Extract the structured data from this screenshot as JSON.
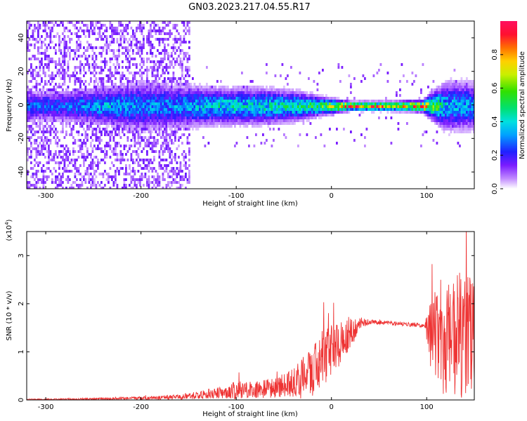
{
  "title": "GN03.2023.217.04.55.R17",
  "chart_data": [
    {
      "type": "heatmap",
      "xlabel": "Height of straight line (km)",
      "ylabel": "Frequency (Hz)",
      "xlim": [
        -320,
        150
      ],
      "ylim": [
        -50,
        50
      ],
      "xticks": [
        -300,
        -200,
        -100,
        0,
        100
      ],
      "yticks": [
        -40,
        -20,
        0,
        20,
        40
      ],
      "colorbar": {
        "label": "Normalized spectral amplitude",
        "range": [
          0.0,
          1.0
        ],
        "ticks": [
          0.0,
          0.2,
          0.4,
          0.6,
          0.8
        ]
      },
      "ridge": [
        {
          "x": -280,
          "band_hz": 5,
          "amplitude": 0.3
        },
        {
          "x": -240,
          "band_hz": 6,
          "amplitude": 0.4
        },
        {
          "x": -200,
          "band_hz": 8,
          "amplitude": 0.35
        },
        {
          "x": -160,
          "band_hz": 7,
          "amplitude": 0.35
        },
        {
          "x": -120,
          "band_hz": 6,
          "amplitude": 0.45
        },
        {
          "x": -80,
          "band_hz": 6,
          "amplitude": 0.45
        },
        {
          "x": -40,
          "band_hz": 5,
          "amplitude": 0.5
        },
        {
          "x": -10,
          "band_hz": 3,
          "amplitude": 0.6
        },
        {
          "x": 20,
          "band_hz": 1.5,
          "amplitude": 0.95
        },
        {
          "x": 60,
          "band_hz": 1.5,
          "amplitude": 0.9
        },
        {
          "x": 95,
          "band_hz": 2,
          "amplitude": 0.85
        },
        {
          "x": 120,
          "band_hz": 8,
          "amplitude": 0.4
        },
        {
          "x": 145,
          "band_hz": 8,
          "amplitude": 0.35
        }
      ]
    },
    {
      "type": "line",
      "xlabel": "Height of straight line (km)",
      "ylabel": "SNR (10 * v/v)",
      "y_multiplier": "(x10",
      "y_multiplier_exp": "4",
      "xlim": [
        -320,
        150
      ],
      "ylim": [
        0,
        3.5
      ],
      "xticks": [
        -300,
        -200,
        -100,
        0,
        100
      ],
      "yticks": [
        0,
        1,
        2,
        3
      ],
      "series": [
        {
          "color": "#ee3333",
          "envelope": [
            {
              "x": -320,
              "mean": 0.01,
              "spread": 0.01
            },
            {
              "x": -250,
              "mean": 0.02,
              "spread": 0.02
            },
            {
              "x": -200,
              "mean": 0.04,
              "spread": 0.03
            },
            {
              "x": -160,
              "mean": 0.06,
              "spread": 0.05
            },
            {
              "x": -120,
              "mean": 0.15,
              "spread": 0.12
            },
            {
              "x": -100,
              "mean": 0.2,
              "spread": 0.18
            },
            {
              "x": -60,
              "mean": 0.25,
              "spread": 0.2
            },
            {
              "x": -40,
              "mean": 0.35,
              "spread": 0.3
            },
            {
              "x": -25,
              "mean": 0.5,
              "spread": 0.5
            },
            {
              "x": -10,
              "mean": 0.8,
              "spread": 0.55
            },
            {
              "x": 0,
              "mean": 1.05,
              "spread": 0.55
            },
            {
              "x": 10,
              "mean": 1.2,
              "spread": 0.45
            },
            {
              "x": 20,
              "mean": 1.4,
              "spread": 0.35
            },
            {
              "x": 30,
              "mean": 1.6,
              "spread": 0.12
            },
            {
              "x": 40,
              "mean": 1.62,
              "spread": 0.05
            },
            {
              "x": 60,
              "mean": 1.6,
              "spread": 0.04
            },
            {
              "x": 80,
              "mean": 1.57,
              "spread": 0.04
            },
            {
              "x": 98,
              "mean": 1.55,
              "spread": 0.05
            },
            {
              "x": 105,
              "mean": 1.4,
              "spread": 0.9
            },
            {
              "x": 120,
              "mean": 1.3,
              "spread": 1.3
            },
            {
              "x": 135,
              "mean": 1.3,
              "spread": 1.4
            },
            {
              "x": 150,
              "mean": 1.3,
              "spread": 1.2
            }
          ]
        }
      ]
    }
  ]
}
